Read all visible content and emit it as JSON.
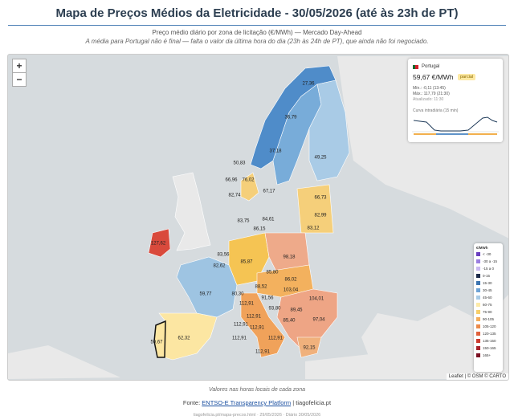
{
  "header": {
    "title": "Mapa de Preços Médios da Eletricidade - 30/05/2026 (até às 23h de PT)",
    "subtitle": "Preço médio diário por zona de licitação (€/MWh) — Mercado Day-Ahead",
    "note": "A média para Portugal não é final — falta o valor da última hora do dia (23h às 24h de PT), que ainda não foi negociado."
  },
  "map": {
    "zoom_in": "+",
    "zoom_out": "−",
    "zones": [
      "27,36",
      "36,79",
      "37,18",
      "49,25",
      "50,83",
      "66,96",
      "76,02",
      "67,17",
      "82,74",
      "66,73",
      "82,99",
      "83,75",
      "84,61",
      "86,15",
      "83,12",
      "127,62",
      "98,18",
      "83,56",
      "82,62",
      "85,87",
      "85,80",
      "86,02",
      "88,52",
      "103,04",
      "59,77",
      "80,30",
      "91,56",
      "104,01",
      "112,91",
      "93,80",
      "89,45",
      "112,91",
      "112,91",
      "97,04",
      "85,40",
      "112,91",
      "62,32",
      "59,67",
      "112,91",
      "112,91",
      "92,15",
      "112,91"
    ],
    "attribution": "Leaflet | © OSM © CARTO"
  },
  "info": {
    "country": "Portugal",
    "price": "59,67 €/MWh",
    "badge": "parcial",
    "min": "Mín.: -0,11 (13:45)",
    "max": "Máx.: 117,79 (21:30)",
    "updated": "Atualizado: 11:30",
    "curve": "Curva intradiária (15 min)"
  },
  "legend": {
    "title": "€/MWh",
    "items": [
      "< -30",
      "-30 a -15",
      "-15 a 0",
      "0-15",
      "15-30",
      "30-45",
      "45-60",
      "60-75",
      "75-90",
      "90-105",
      "105-120",
      "120-135",
      "135-150",
      "150-165",
      "165+"
    ]
  },
  "footer": {
    "note": "Valores nas horas locais de cada zona",
    "source_prefix": "Fonte:",
    "source_link": "ENTSO-E Transparency Platform",
    "source_suffix": "| tiagofelicia.pt",
    "meta": "tiagofelicia.pt/mapa-precos.html · 29/05/2026 · Diário 30/05/2026"
  }
}
